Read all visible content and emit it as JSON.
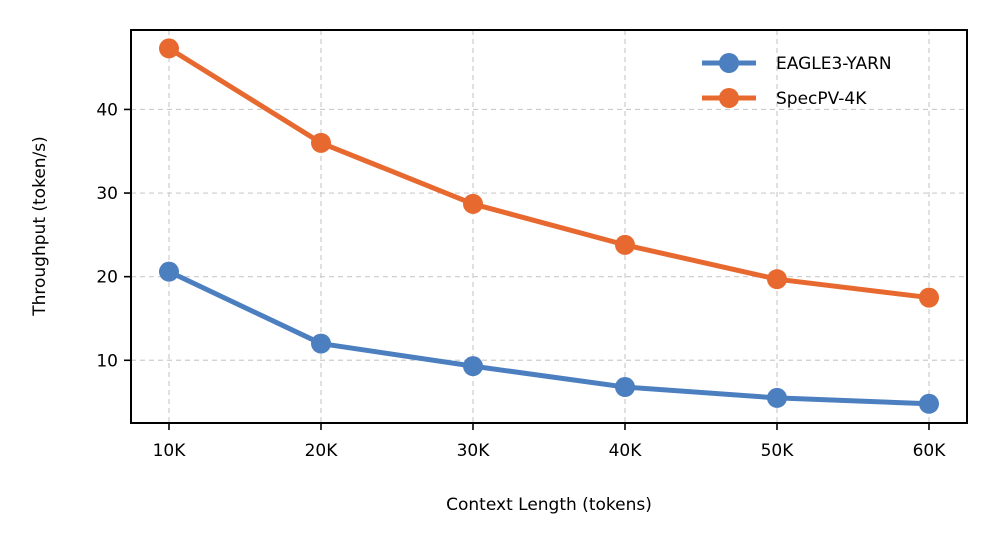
{
  "chart_data": {
    "type": "line",
    "xlabel": "Context Length (tokens)",
    "ylabel": "Throughput (token/s)",
    "categories": [
      "10K",
      "20K",
      "30K",
      "40K",
      "50K",
      "60K"
    ],
    "x": [
      10,
      20,
      30,
      40,
      50,
      60
    ],
    "xlim": [
      7.5,
      62.5
    ],
    "ylim": [
      2.5,
      49.5
    ],
    "yticks": [
      10,
      20,
      30,
      40
    ],
    "grid": true,
    "legend_position": "upper-right",
    "series": [
      {
        "name": "EAGLE3-YARN",
        "color": "#4c7fc0",
        "values": [
          20.6,
          12.0,
          9.3,
          6.8,
          5.5,
          4.8
        ]
      },
      {
        "name": "SpecPV-4K",
        "color": "#e8692f",
        "values": [
          47.3,
          36.0,
          28.7,
          23.8,
          19.7,
          17.5
        ]
      }
    ]
  }
}
